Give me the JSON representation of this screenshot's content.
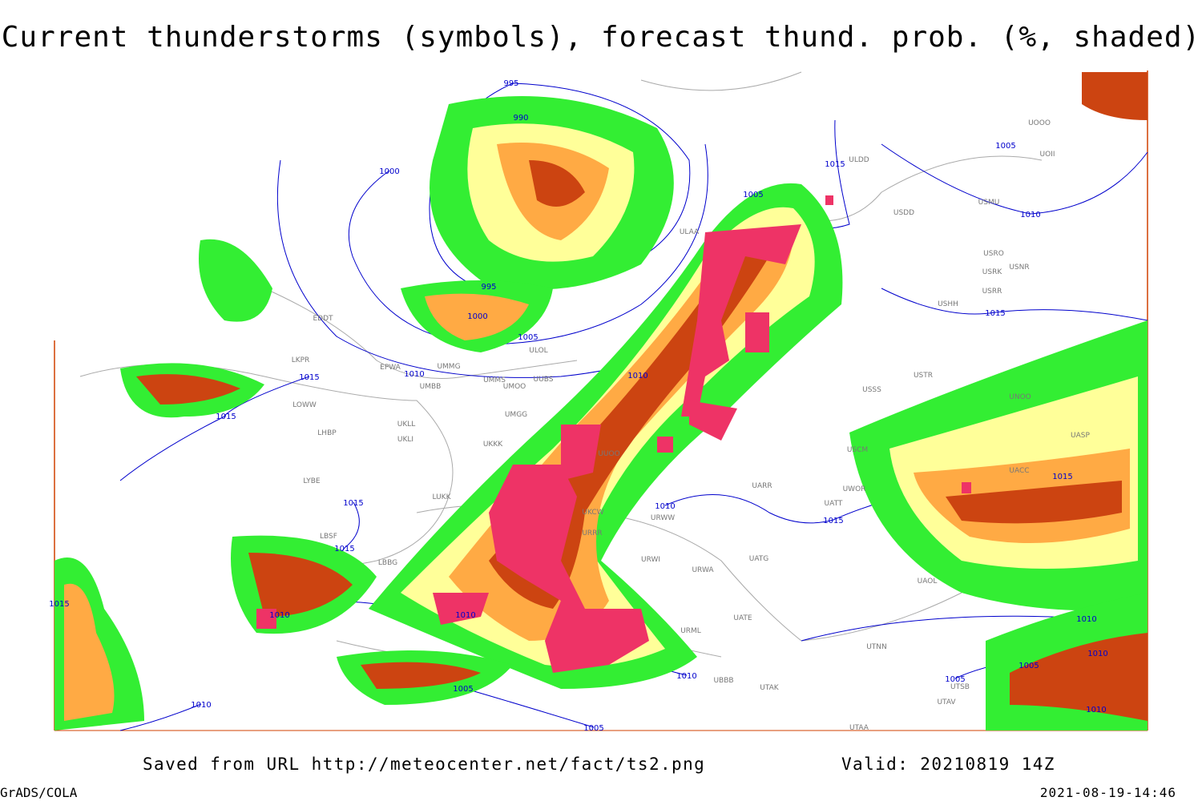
{
  "title": "Current thunderstorms (symbols), forecast thund. prob. (%, shaded)",
  "footer": {
    "source": "Saved from URL http://meteocenter.net/fact/ts2.png",
    "valid": "Valid: 20210819 14Z",
    "software": "GrADS/COLA",
    "timestamp": "2021-08-19-14:46"
  },
  "isobar_labels": [
    "995",
    "990",
    "1000",
    "1005",
    "1015",
    "1005",
    "1010",
    "995",
    "1000",
    "1005",
    "1010",
    "1010",
    "1015",
    "1015",
    "1015",
    "1015",
    "1015",
    "1010",
    "1015",
    "1015",
    "1010",
    "1010",
    "1010",
    "1005",
    "1005",
    "1010",
    "1010",
    "1010",
    "1005",
    "1005",
    "1010",
    "1015"
  ],
  "station_labels": [
    "ULDD",
    "USDD",
    "USMU",
    "UOOO",
    "UOII",
    "ULAA",
    "USRO",
    "USRK",
    "USNR",
    "USRR",
    "USHH",
    "ULOL",
    "UMMG",
    "EPWA",
    "LKPR",
    "EDDT",
    "UMMS",
    "UUBS",
    "UMBB",
    "UMOO",
    "LOWW",
    "UMGG",
    "UKLL",
    "LHBP",
    "UKLI",
    "UKKK",
    "UUOO",
    "USCM",
    "USSS",
    "USTR",
    "UNOO",
    "UASP",
    "UACC",
    "LYBE",
    "LUKK",
    "UKCW",
    "URWW",
    "UWOR",
    "UATT",
    "UARR",
    "URRR",
    "LBSF",
    "LBBG",
    "URWI",
    "URWA",
    "UATG",
    "UATE",
    "UAOL",
    "URML",
    "UTNN",
    "UBBB",
    "UTAK",
    "UTAV",
    "UTSB",
    "UTAA"
  ]
}
